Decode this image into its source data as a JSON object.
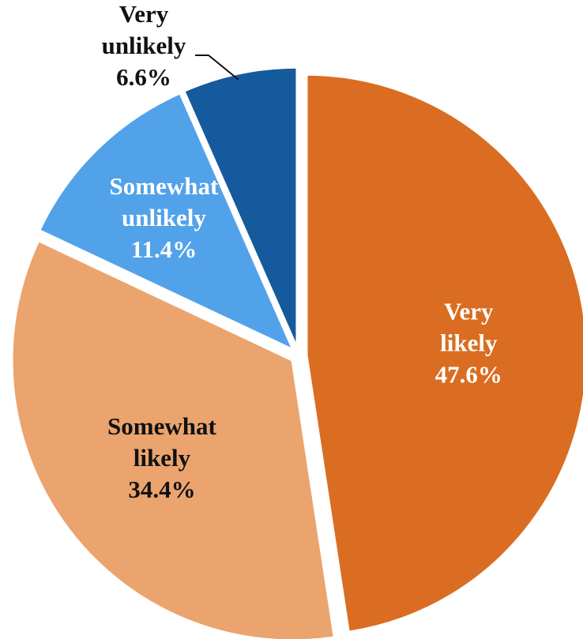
{
  "chart_data": {
    "type": "pie",
    "title": "",
    "slices": [
      {
        "lines": [
          "Very",
          "likely"
        ],
        "value": 47.6,
        "value_label": "47.6%",
        "color": "#DA6D21",
        "text_color": "#FFFFFF",
        "label_pos": "inside"
      },
      {
        "lines": [
          "Somewhat",
          "likely"
        ],
        "value": 34.4,
        "value_label": "34.4%",
        "color": "#EBA46E",
        "text_color": "#111111",
        "label_pos": "inside"
      },
      {
        "lines": [
          "Somewhat",
          "unlikely"
        ],
        "value": 11.4,
        "value_label": "11.4%",
        "color": "#52A2EA",
        "text_color": "#FFFFFF",
        "label_pos": "inside"
      },
      {
        "lines": [
          "Very",
          "unlikely"
        ],
        "value": 6.6,
        "value_label": "6.6%",
        "color": "#155A9C",
        "text_color": "#111111",
        "label_pos": "outside"
      }
    ]
  }
}
